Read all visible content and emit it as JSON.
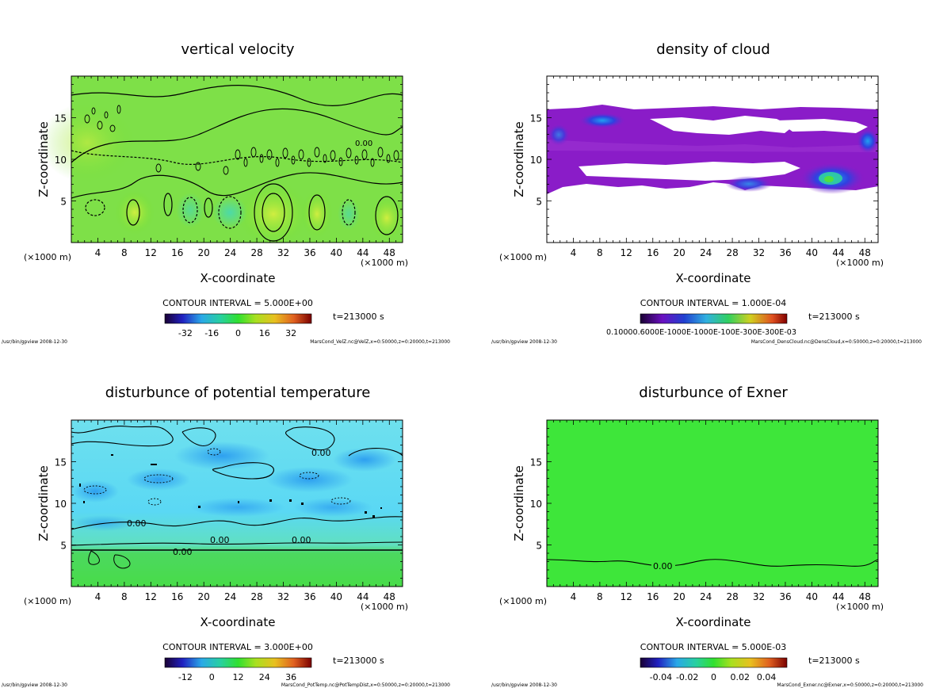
{
  "chart_data": [
    {
      "type": "heatmap",
      "title": "vertical velocity",
      "xlabel": "X-coordinate",
      "ylabel": "Z-coordinate",
      "x_unit_left": "(×1000 m)",
      "x_unit_right": "(×1000 m)",
      "xlim": [
        0,
        50
      ],
      "ylim": [
        0,
        20
      ],
      "xticks": [
        4,
        8,
        12,
        16,
        20,
        24,
        28,
        32,
        36,
        40,
        44,
        48
      ],
      "yticks": [
        5,
        10,
        15
      ],
      "contour_interval": "CONTOUR INTERVAL = 5.000E+00",
      "time": "t=213000 s",
      "colorbar_ticks": [
        "-32",
        "-16",
        "0",
        "16",
        "32"
      ],
      "footer_left": "/usr/bin/gpview  2008-12-30",
      "footer_right": "MarsCond_VelZ.nc@VelZ,x=0:50000,z=0:20000,t=213000",
      "contour_labels": [
        "0.00"
      ]
    },
    {
      "type": "heatmap",
      "title": "density of cloud",
      "xlabel": "X-coordinate",
      "ylabel": "Z-coordinate",
      "x_unit_left": "(×1000 m)",
      "x_unit_right": "(×1000 m)",
      "xlim": [
        0,
        50
      ],
      "ylim": [
        0,
        20
      ],
      "xticks": [
        4,
        8,
        12,
        16,
        20,
        24,
        28,
        32,
        36,
        40,
        44,
        48
      ],
      "yticks": [
        5,
        10,
        15
      ],
      "contour_interval": "CONTOUR INTERVAL = 1.000E-04",
      "time": "t=213000 s",
      "colorbar_text": "0.10000.6000E-1000E-1000E-100E-300E-300E-03",
      "footer_left": "/usr/bin/gpview  2008-12-30",
      "footer_right": "MarsCond_DensCloud.nc@DensCloud,x=0:50000,z=0:20000,t=213000"
    },
    {
      "type": "heatmap",
      "title": "disturbunce of potential temperature",
      "xlabel": "X-coordinate",
      "ylabel": "Z-coordinate",
      "x_unit_left": "(×1000 m)",
      "x_unit_right": "(×1000 m)",
      "xlim": [
        0,
        50
      ],
      "ylim": [
        0,
        20
      ],
      "xticks": [
        4,
        8,
        12,
        16,
        20,
        24,
        28,
        32,
        36,
        40,
        44,
        48
      ],
      "yticks": [
        5,
        10,
        15
      ],
      "contour_interval": "CONTOUR INTERVAL = 3.000E+00",
      "time": "t=213000 s",
      "colorbar_ticks": [
        "-12",
        "0",
        "12",
        "24",
        "36"
      ],
      "footer_left": "/usr/bin/gpview  2008-12-30",
      "footer_right": "MarsCond_PotTemp.nc@PotTempDist,x=0:50000,z=0:20000,t=213000",
      "contour_labels": [
        "0.00",
        "0.00",
        "0.00",
        "0.00",
        "0.00"
      ]
    },
    {
      "type": "heatmap",
      "title": "disturbunce of Exner",
      "xlabel": "X-coordinate",
      "ylabel": "Z-coordinate",
      "x_unit_left": "(×1000 m)",
      "x_unit_right": "(×1000 m)",
      "xlim": [
        0,
        50
      ],
      "ylim": [
        0,
        20
      ],
      "xticks": [
        4,
        8,
        12,
        16,
        20,
        24,
        28,
        32,
        36,
        40,
        44,
        48
      ],
      "yticks": [
        5,
        10,
        15
      ],
      "contour_interval": "CONTOUR INTERVAL = 5.000E-03",
      "time": "t=213000 s",
      "colorbar_ticks": [
        "-0.04",
        "-0.02",
        "0",
        "0.02",
        "0.04"
      ],
      "footer_left": "/usr/bin/gpview  2008-12-30",
      "footer_right": "MarsCond_Exner.nc@Exner,x=0:50000,z=0:20000,t=213000",
      "contour_labels": [
        "0.00"
      ]
    }
  ]
}
